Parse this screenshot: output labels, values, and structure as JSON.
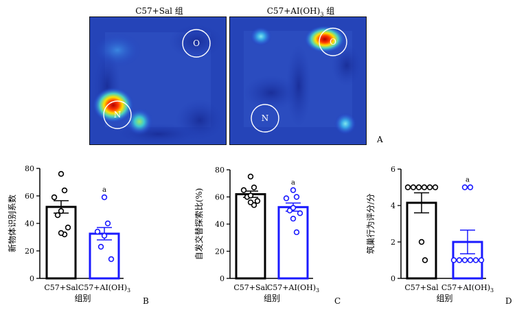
{
  "heatmaps": [
    {
      "title": "C57+Sal 组",
      "zone_labels": [
        "O",
        "N"
      ]
    },
    {
      "title_parts": [
        "C57+AI(OH)",
        "3",
        " 组"
      ],
      "zone_labels": [
        "O",
        "N"
      ]
    }
  ],
  "panel_letters": [
    "A",
    "B",
    "C",
    "D"
  ],
  "chart_data": [
    {
      "type": "bar",
      "panel": "B",
      "categories": [
        "C57+Sal",
        "C57+AI(OH)3"
      ],
      "category_label_parts": [
        [
          "C57+Sal"
        ],
        [
          "C57+AI(OH)",
          "3"
        ]
      ],
      "values": [
        52,
        32.5
      ],
      "sem": [
        4.5,
        4.5
      ],
      "points": [
        [
          76,
          64,
          59,
          49,
          46,
          37,
          33,
          32
        ],
        [
          59,
          40,
          34,
          31,
          23,
          14
        ]
      ],
      "xlabel": "组别",
      "ylabel": "新物体识别系数",
      "ylim": [
        0,
        80
      ],
      "yticks": [
        0,
        20,
        40,
        60,
        80
      ],
      "annotation": "a",
      "colors": [
        "#000000",
        "#1a1aff"
      ]
    },
    {
      "type": "bar",
      "panel": "C",
      "categories": [
        "C57+Sal",
        "C57+AI(OH)3"
      ],
      "category_label_parts": [
        [
          "C57+Sal"
        ],
        [
          "C57+AI(OH)",
          "3"
        ]
      ],
      "values": [
        62,
        52.5
      ],
      "sem": [
        2.3,
        3.0
      ],
      "points": [
        [
          75,
          67,
          65,
          61,
          60,
          57,
          56,
          54
        ],
        [
          65,
          60,
          59,
          52,
          50,
          48,
          44,
          34
        ]
      ],
      "xlabel": "组别",
      "ylabel": "自发交替探索比(%)",
      "ylim": [
        0,
        80
      ],
      "yticks": [
        0,
        20,
        40,
        60,
        80
      ],
      "annotation": "a",
      "colors": [
        "#000000",
        "#1a1aff"
      ]
    },
    {
      "type": "bar",
      "panel": "D",
      "categories": [
        "C57+Sal",
        "C57+AI(OH)3"
      ],
      "category_label_parts": [
        [
          "C57+Sal"
        ],
        [
          "C57+AI(OH)",
          "3"
        ]
      ],
      "values": [
        4.15,
        2.0
      ],
      "sem": [
        0.55,
        0.65
      ],
      "points": [
        [
          5,
          5,
          5,
          5,
          5,
          5,
          2,
          1
        ],
        [
          5,
          5,
          1,
          1,
          1,
          1,
          1,
          1
        ]
      ],
      "xlabel": "组别",
      "ylabel": "筑巢行为评分/分",
      "ylim": [
        0,
        6
      ],
      "yticks": [
        0,
        2,
        4,
        6
      ],
      "annotation": "a",
      "colors": [
        "#000000",
        "#1a1aff"
      ]
    }
  ]
}
